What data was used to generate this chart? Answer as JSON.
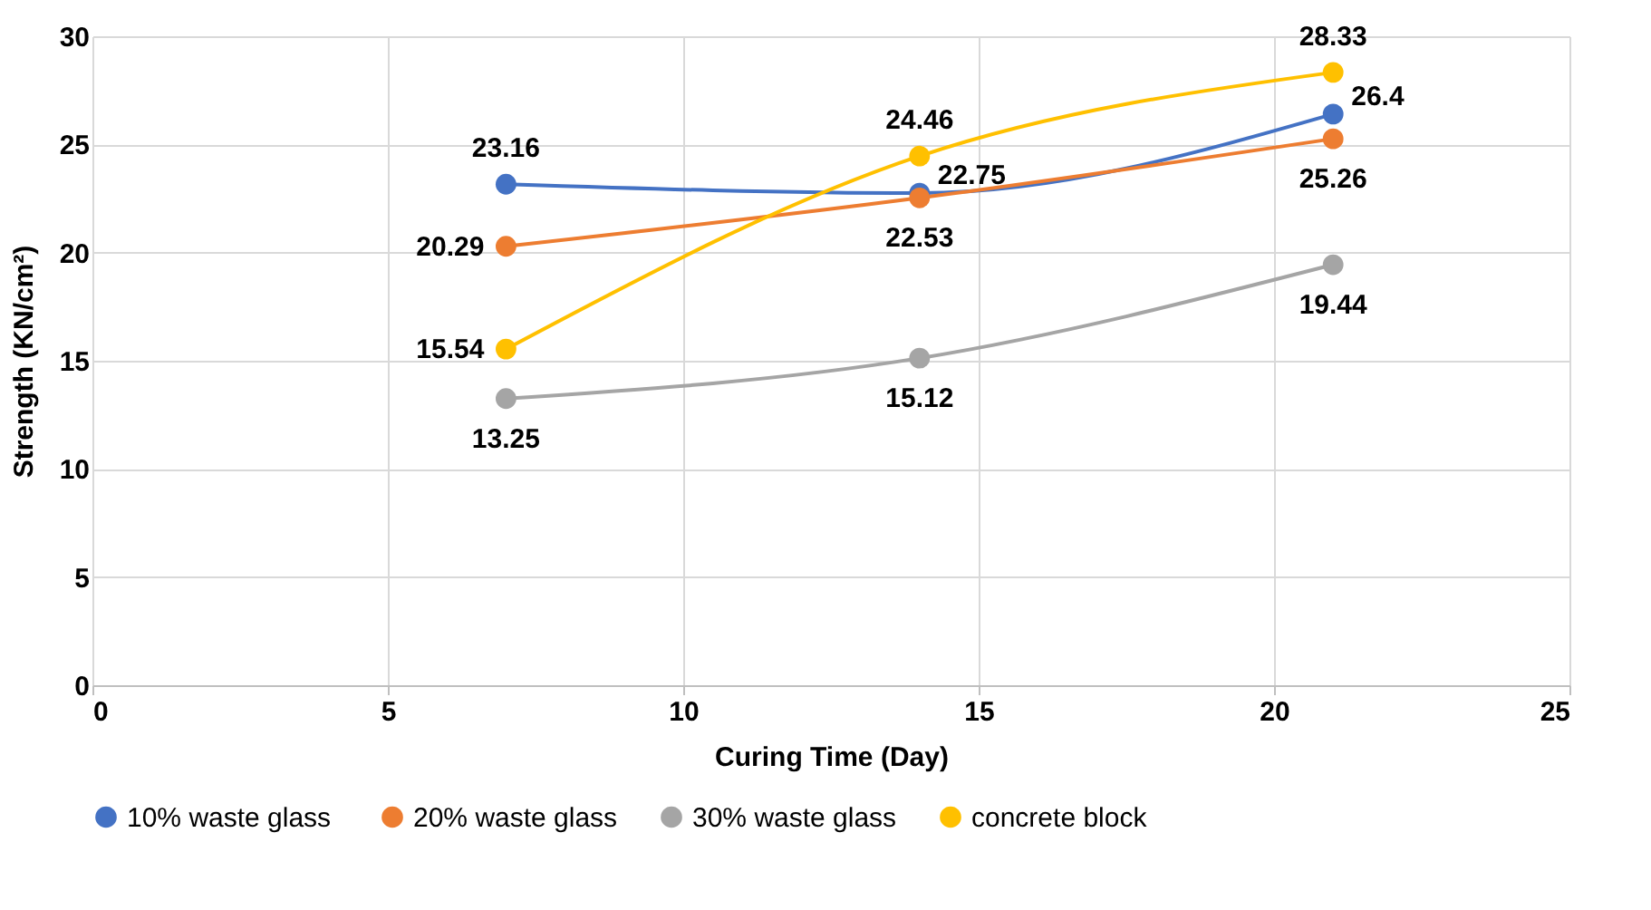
{
  "chart_data": {
    "type": "line",
    "xlabel": "Curing Time (Day)",
    "ylabel": "Strength (KN/cm²)",
    "x": [
      7,
      14,
      21
    ],
    "series": [
      {
        "name": "10%  waste glass",
        "color": "#4472c4",
        "values": [
          23.16,
          22.75,
          26.4
        ]
      },
      {
        "name": "20% waste glass",
        "color": "#ed7d31",
        "values": [
          20.29,
          22.53,
          25.26
        ]
      },
      {
        "name": "30% waste glass",
        "color": "#a5a5a5",
        "values": [
          13.25,
          15.12,
          19.44
        ]
      },
      {
        "name": "concrete block",
        "color": "#ffc000",
        "values": [
          15.54,
          24.46,
          28.33
        ]
      }
    ],
    "xlim": [
      0,
      25
    ],
    "xticks": [
      0,
      5,
      10,
      15,
      20,
      25
    ],
    "ylim": [
      0,
      30
    ],
    "yticks": [
      0,
      5,
      10,
      15,
      20,
      25,
      30
    ],
    "grid": true,
    "legend": "bottom",
    "marker": "circle",
    "line_style": "solid",
    "data_labels": true
  }
}
